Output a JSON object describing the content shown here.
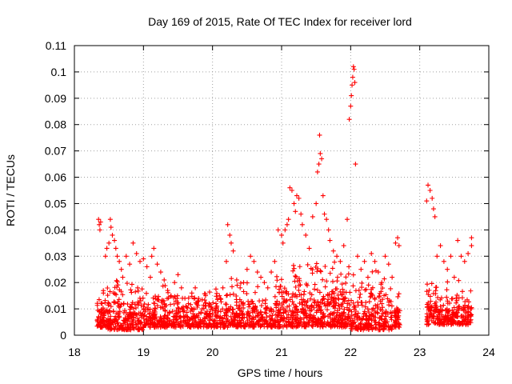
{
  "chart_data": {
    "type": "scatter",
    "title": "Day 169 of 2015, Rate Of TEC Index for receiver lord",
    "xlabel": "GPS time / hours",
    "ylabel": "ROTI / TECUs",
    "xlim": [
      18,
      24
    ],
    "ylim": [
      0,
      0.11
    ],
    "x_ticks": [
      "18",
      "19",
      "20",
      "21",
      "22",
      "23",
      "24"
    ],
    "y_ticks": [
      "0",
      "0.01",
      "0.02",
      "0.03",
      "0.04",
      "0.05",
      "0.06",
      "0.07",
      "0.08",
      "0.09",
      "0.1",
      "0.11"
    ],
    "grid": true,
    "marker": "plus",
    "series_color": "#ff0000",
    "points": [
      [
        18.35,
        0.044
      ],
      [
        18.36,
        0.042
      ],
      [
        18.37,
        0.04
      ],
      [
        18.38,
        0.043
      ],
      [
        18.35,
        0.007
      ],
      [
        18.36,
        0.009
      ],
      [
        18.4,
        0.012
      ],
      [
        18.42,
        0.016
      ],
      [
        18.45,
        0.03
      ],
      [
        18.47,
        0.033
      ],
      [
        18.5,
        0.035
      ],
      [
        18.52,
        0.044
      ],
      [
        18.53,
        0.041
      ],
      [
        18.55,
        0.038
      ],
      [
        18.58,
        0.036
      ],
      [
        18.6,
        0.033
      ],
      [
        18.62,
        0.03
      ],
      [
        18.65,
        0.028
      ],
      [
        18.68,
        0.025
      ],
      [
        18.7,
        0.022
      ],
      [
        18.75,
        0.03
      ],
      [
        18.8,
        0.027
      ],
      [
        18.85,
        0.035
      ],
      [
        18.9,
        0.031
      ],
      [
        18.95,
        0.028
      ],
      [
        19.0,
        0.029
      ],
      [
        19.05,
        0.026
      ],
      [
        19.1,
        0.022
      ],
      [
        19.12,
        0.03
      ],
      [
        19.15,
        0.033
      ],
      [
        19.2,
        0.027
      ],
      [
        19.25,
        0.024
      ],
      [
        19.3,
        0.021
      ],
      [
        19.35,
        0.017
      ],
      [
        19.4,
        0.015
      ],
      [
        19.45,
        0.02
      ],
      [
        19.5,
        0.023
      ],
      [
        19.55,
        0.018
      ],
      [
        19.6,
        0.014
      ],
      [
        19.65,
        0.012
      ],
      [
        19.7,
        0.016
      ],
      [
        19.75,
        0.018
      ],
      [
        19.8,
        0.013
      ],
      [
        19.85,
        0.01
      ],
      [
        19.9,
        0.015
      ],
      [
        19.95,
        0.012
      ],
      [
        20.0,
        0.01
      ],
      [
        20.05,
        0.012
      ],
      [
        20.1,
        0.015
      ],
      [
        20.15,
        0.018
      ],
      [
        20.2,
        0.028
      ],
      [
        20.22,
        0.042
      ],
      [
        20.25,
        0.038
      ],
      [
        20.27,
        0.035
      ],
      [
        20.3,
        0.032
      ],
      [
        20.35,
        0.021
      ],
      [
        20.4,
        0.018
      ],
      [
        20.45,
        0.02
      ],
      [
        20.5,
        0.025
      ],
      [
        20.55,
        0.03
      ],
      [
        20.6,
        0.028
      ],
      [
        20.65,
        0.024
      ],
      [
        20.7,
        0.022
      ],
      [
        20.75,
        0.02
      ],
      [
        20.8,
        0.018
      ],
      [
        20.85,
        0.024
      ],
      [
        20.9,
        0.028
      ],
      [
        20.95,
        0.04
      ],
      [
        21.0,
        0.038
      ],
      [
        21.02,
        0.035
      ],
      [
        21.05,
        0.04
      ],
      [
        21.08,
        0.042
      ],
      [
        21.1,
        0.044
      ],
      [
        21.12,
        0.056
      ],
      [
        21.15,
        0.055
      ],
      [
        21.18,
        0.05
      ],
      [
        21.2,
        0.047
      ],
      [
        21.22,
        0.053
      ],
      [
        21.25,
        0.052
      ],
      [
        21.28,
        0.046
      ],
      [
        21.3,
        0.042
      ],
      [
        21.35,
        0.038
      ],
      [
        21.4,
        0.033
      ],
      [
        21.45,
        0.045
      ],
      [
        21.5,
        0.05
      ],
      [
        21.52,
        0.062
      ],
      [
        21.54,
        0.065
      ],
      [
        21.55,
        0.076
      ],
      [
        21.56,
        0.069
      ],
      [
        21.58,
        0.067
      ],
      [
        21.6,
        0.053
      ],
      [
        21.62,
        0.046
      ],
      [
        21.65,
        0.044
      ],
      [
        21.68,
        0.04
      ],
      [
        21.7,
        0.036
      ],
      [
        21.75,
        0.032
      ],
      [
        21.8,
        0.03
      ],
      [
        21.85,
        0.028
      ],
      [
        21.9,
        0.034
      ],
      [
        21.95,
        0.044
      ],
      [
        21.98,
        0.082
      ],
      [
        22.0,
        0.087
      ],
      [
        22.01,
        0.091
      ],
      [
        22.02,
        0.095
      ],
      [
        22.03,
        0.098
      ],
      [
        22.04,
        0.102
      ],
      [
        22.05,
        0.101
      ],
      [
        22.06,
        0.096
      ],
      [
        22.07,
        0.065
      ],
      [
        22.1,
        0.03
      ],
      [
        22.15,
        0.025
      ],
      [
        22.2,
        0.028
      ],
      [
        22.25,
        0.022
      ],
      [
        22.3,
        0.031
      ],
      [
        22.35,
        0.028
      ],
      [
        22.4,
        0.024
      ],
      [
        22.45,
        0.02
      ],
      [
        22.5,
        0.03
      ],
      [
        22.55,
        0.027
      ],
      [
        22.6,
        0.022
      ],
      [
        22.65,
        0.035
      ],
      [
        22.68,
        0.037
      ],
      [
        22.7,
        0.034
      ],
      [
        23.1,
        0.051
      ],
      [
        23.12,
        0.057
      ],
      [
        23.15,
        0.055
      ],
      [
        23.18,
        0.052
      ],
      [
        23.2,
        0.048
      ],
      [
        23.22,
        0.045
      ],
      [
        23.25,
        0.03
      ],
      [
        23.3,
        0.034
      ],
      [
        23.35,
        0.028
      ],
      [
        23.4,
        0.025
      ],
      [
        23.45,
        0.03
      ],
      [
        23.5,
        0.022
      ],
      [
        23.55,
        0.036
      ],
      [
        23.6,
        0.03
      ],
      [
        23.65,
        0.028
      ],
      [
        23.7,
        0.031
      ],
      [
        23.75,
        0.034
      ],
      [
        23.75,
        0.037
      ]
    ],
    "dense_clusters": [
      {
        "x_range": [
          18.33,
          18.45
        ],
        "y_range": [
          0.003,
          0.019
        ],
        "count": 60
      },
      {
        "x_range": [
          18.45,
          19.0
        ],
        "y_range": [
          0.002,
          0.022
        ],
        "count": 220
      },
      {
        "x_range": [
          19.0,
          19.6
        ],
        "y_range": [
          0.003,
          0.02
        ],
        "count": 230
      },
      {
        "x_range": [
          19.6,
          20.2
        ],
        "y_range": [
          0.003,
          0.018
        ],
        "count": 220
      },
      {
        "x_range": [
          20.2,
          20.9
        ],
        "y_range": [
          0.003,
          0.022
        ],
        "count": 240
      },
      {
        "x_range": [
          20.9,
          21.5
        ],
        "y_range": [
          0.003,
          0.028
        ],
        "count": 260
      },
      {
        "x_range": [
          21.5,
          22.0
        ],
        "y_range": [
          0.003,
          0.03
        ],
        "count": 240
      },
      {
        "x_range": [
          22.0,
          22.6
        ],
        "y_range": [
          0.002,
          0.026
        ],
        "count": 240
      },
      {
        "x_range": [
          22.63,
          22.72
        ],
        "y_range": [
          0.003,
          0.02
        ],
        "count": 40
      },
      {
        "x_range": [
          23.1,
          23.75
        ],
        "y_range": [
          0.004,
          0.022
        ],
        "count": 260
      }
    ]
  }
}
